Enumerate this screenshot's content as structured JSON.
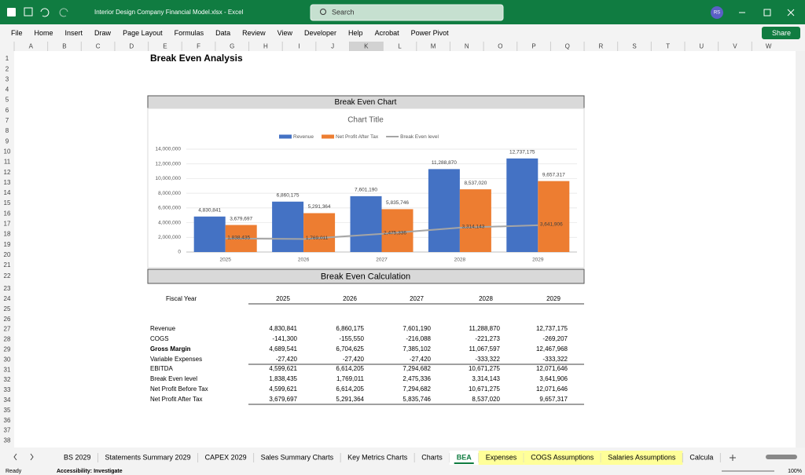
{
  "window": {
    "title": "Interior Design Company Financial Model.xlsx  -  Excel",
    "search": "Search",
    "user": "RS",
    "share": "Share"
  },
  "menu": [
    "File",
    "Home",
    "Insert",
    "Draw",
    "Page Layout",
    "Formulas",
    "Data",
    "Review",
    "View",
    "Developer",
    "Help",
    "Acrobat",
    "Power Pivot"
  ],
  "columns": [
    "A",
    "B",
    "C",
    "D",
    "E",
    "F",
    "G",
    "H",
    "I",
    "J",
    "K",
    "L",
    "M",
    "N",
    "O",
    "P",
    "Q",
    "R",
    "S",
    "T",
    "U",
    "V",
    "W"
  ],
  "rows": [
    1,
    2,
    3,
    4,
    5,
    6,
    7,
    8,
    9,
    10,
    11,
    12,
    13,
    14,
    15,
    16,
    17,
    18,
    19,
    20,
    21,
    22,
    23,
    24,
    25,
    26,
    27,
    28,
    29,
    30,
    31,
    32,
    33,
    34,
    35,
    36,
    37,
    38
  ],
  "sheet_title": "Break Even Analysis",
  "chart_header": "Break Even Chart",
  "chart_data": {
    "type": "bar",
    "title": "Chart Title",
    "categories": [
      "2025",
      "2026",
      "2027",
      "2028",
      "2029"
    ],
    "series": [
      {
        "name": "Revenue",
        "color": "#4472c4",
        "values": [
          4830841,
          6860175,
          7601190,
          11288870,
          12737175
        ],
        "value_labels": [
          "4,830,841",
          "6,860,175",
          "7,601,190",
          "11,288,870",
          "12,737,175"
        ]
      },
      {
        "name": "Net Profit After Tax",
        "color": "#ed7d31",
        "values": [
          3679697,
          5291364,
          5835746,
          8537020,
          9657317
        ],
        "value_labels": [
          "3,679,697",
          "5,291,364",
          "5,835,746",
          "8,537,020",
          "9,657,317"
        ]
      },
      {
        "name": "Break Even level",
        "type": "line",
        "color": "#a5a5a5",
        "values": [
          1838435,
          1769011,
          2475336,
          3314143,
          3641906
        ],
        "value_labels": [
          "1,838,435",
          "1,769,011",
          "2,475,336",
          "3,314,143",
          "3,641,906"
        ]
      }
    ],
    "ylim": [
      0,
      14000000
    ],
    "yticks": [
      0,
      {
        "value": 2000000,
        "label": "2,000,000"
      },
      {
        "value": 4000000,
        "label": "4,000,000"
      },
      {
        "value": 6000000,
        "label": "6,000,000"
      },
      {
        "value": 8000000,
        "label": "8,000,000"
      },
      {
        "value": 10000000,
        "label": "10,000,000"
      },
      {
        "value": 12000000,
        "label": "12,000,000"
      },
      {
        "value": 14000000,
        "label": "14,000,000"
      }
    ],
    "grid": true,
    "legend": "top"
  },
  "calc_header": "Break Even Calculation",
  "table": {
    "header": [
      "Fiscal Year",
      "2025",
      "2026",
      "2027",
      "2028",
      "2029"
    ],
    "rows": [
      {
        "cells": [
          "Revenue",
          "4,830,841",
          "6,860,175",
          "7,601,190",
          "11,288,870",
          "12,737,175"
        ]
      },
      {
        "cells": [
          "COGS",
          "-141,300",
          "-155,550",
          "-216,088",
          "-221,273",
          "-269,207"
        ]
      },
      {
        "cells": [
          "Gross Margin",
          "4,689,541",
          "6,704,625",
          "7,385,102",
          "11,067,597",
          "12,467,968"
        ],
        "bold": true
      },
      {
        "cells": [
          "Variable Expenses",
          "-27,420",
          "-27,420",
          "-27,420",
          "-333,322",
          "-333,322"
        ]
      },
      {
        "cells": [
          "EBITDA",
          "4,599,621",
          "6,614,205",
          "7,294,682",
          "10,671,275",
          "12,071,646"
        ]
      },
      {
        "cells": [
          "Break Even level",
          "1,838,435",
          "1,769,011",
          "2,475,336",
          "3,314,143",
          "3,641,906"
        ]
      },
      {
        "cells": [
          "Net Profit Before Tax",
          "4,599,621",
          "6,614,205",
          "7,294,682",
          "10,671,275",
          "12,071,646"
        ]
      },
      {
        "cells": [
          "Net Profit After Tax",
          "3,679,697",
          "5,291,364",
          "5,835,746",
          "8,537,020",
          "9,657,317"
        ]
      }
    ]
  },
  "tabs": [
    {
      "label": "BS 2029"
    },
    {
      "label": "Statements Summary 2029"
    },
    {
      "label": "CAPEX 2029"
    },
    {
      "label": "Sales Summary Charts"
    },
    {
      "label": "Key Metrics Charts"
    },
    {
      "label": "Charts"
    },
    {
      "label": "BEA",
      "active": true
    },
    {
      "label": "Expenses",
      "color": "#ffff99"
    },
    {
      "label": "COGS Assumptions",
      "color": "#ffff99"
    },
    {
      "label": "Salaries Assumptions",
      "color": "#ffff99"
    },
    {
      "label": "Calcula"
    }
  ],
  "status": {
    "left": "Ready",
    "accessibility": "Accessibility: Investigate",
    "zoom": "100%"
  }
}
